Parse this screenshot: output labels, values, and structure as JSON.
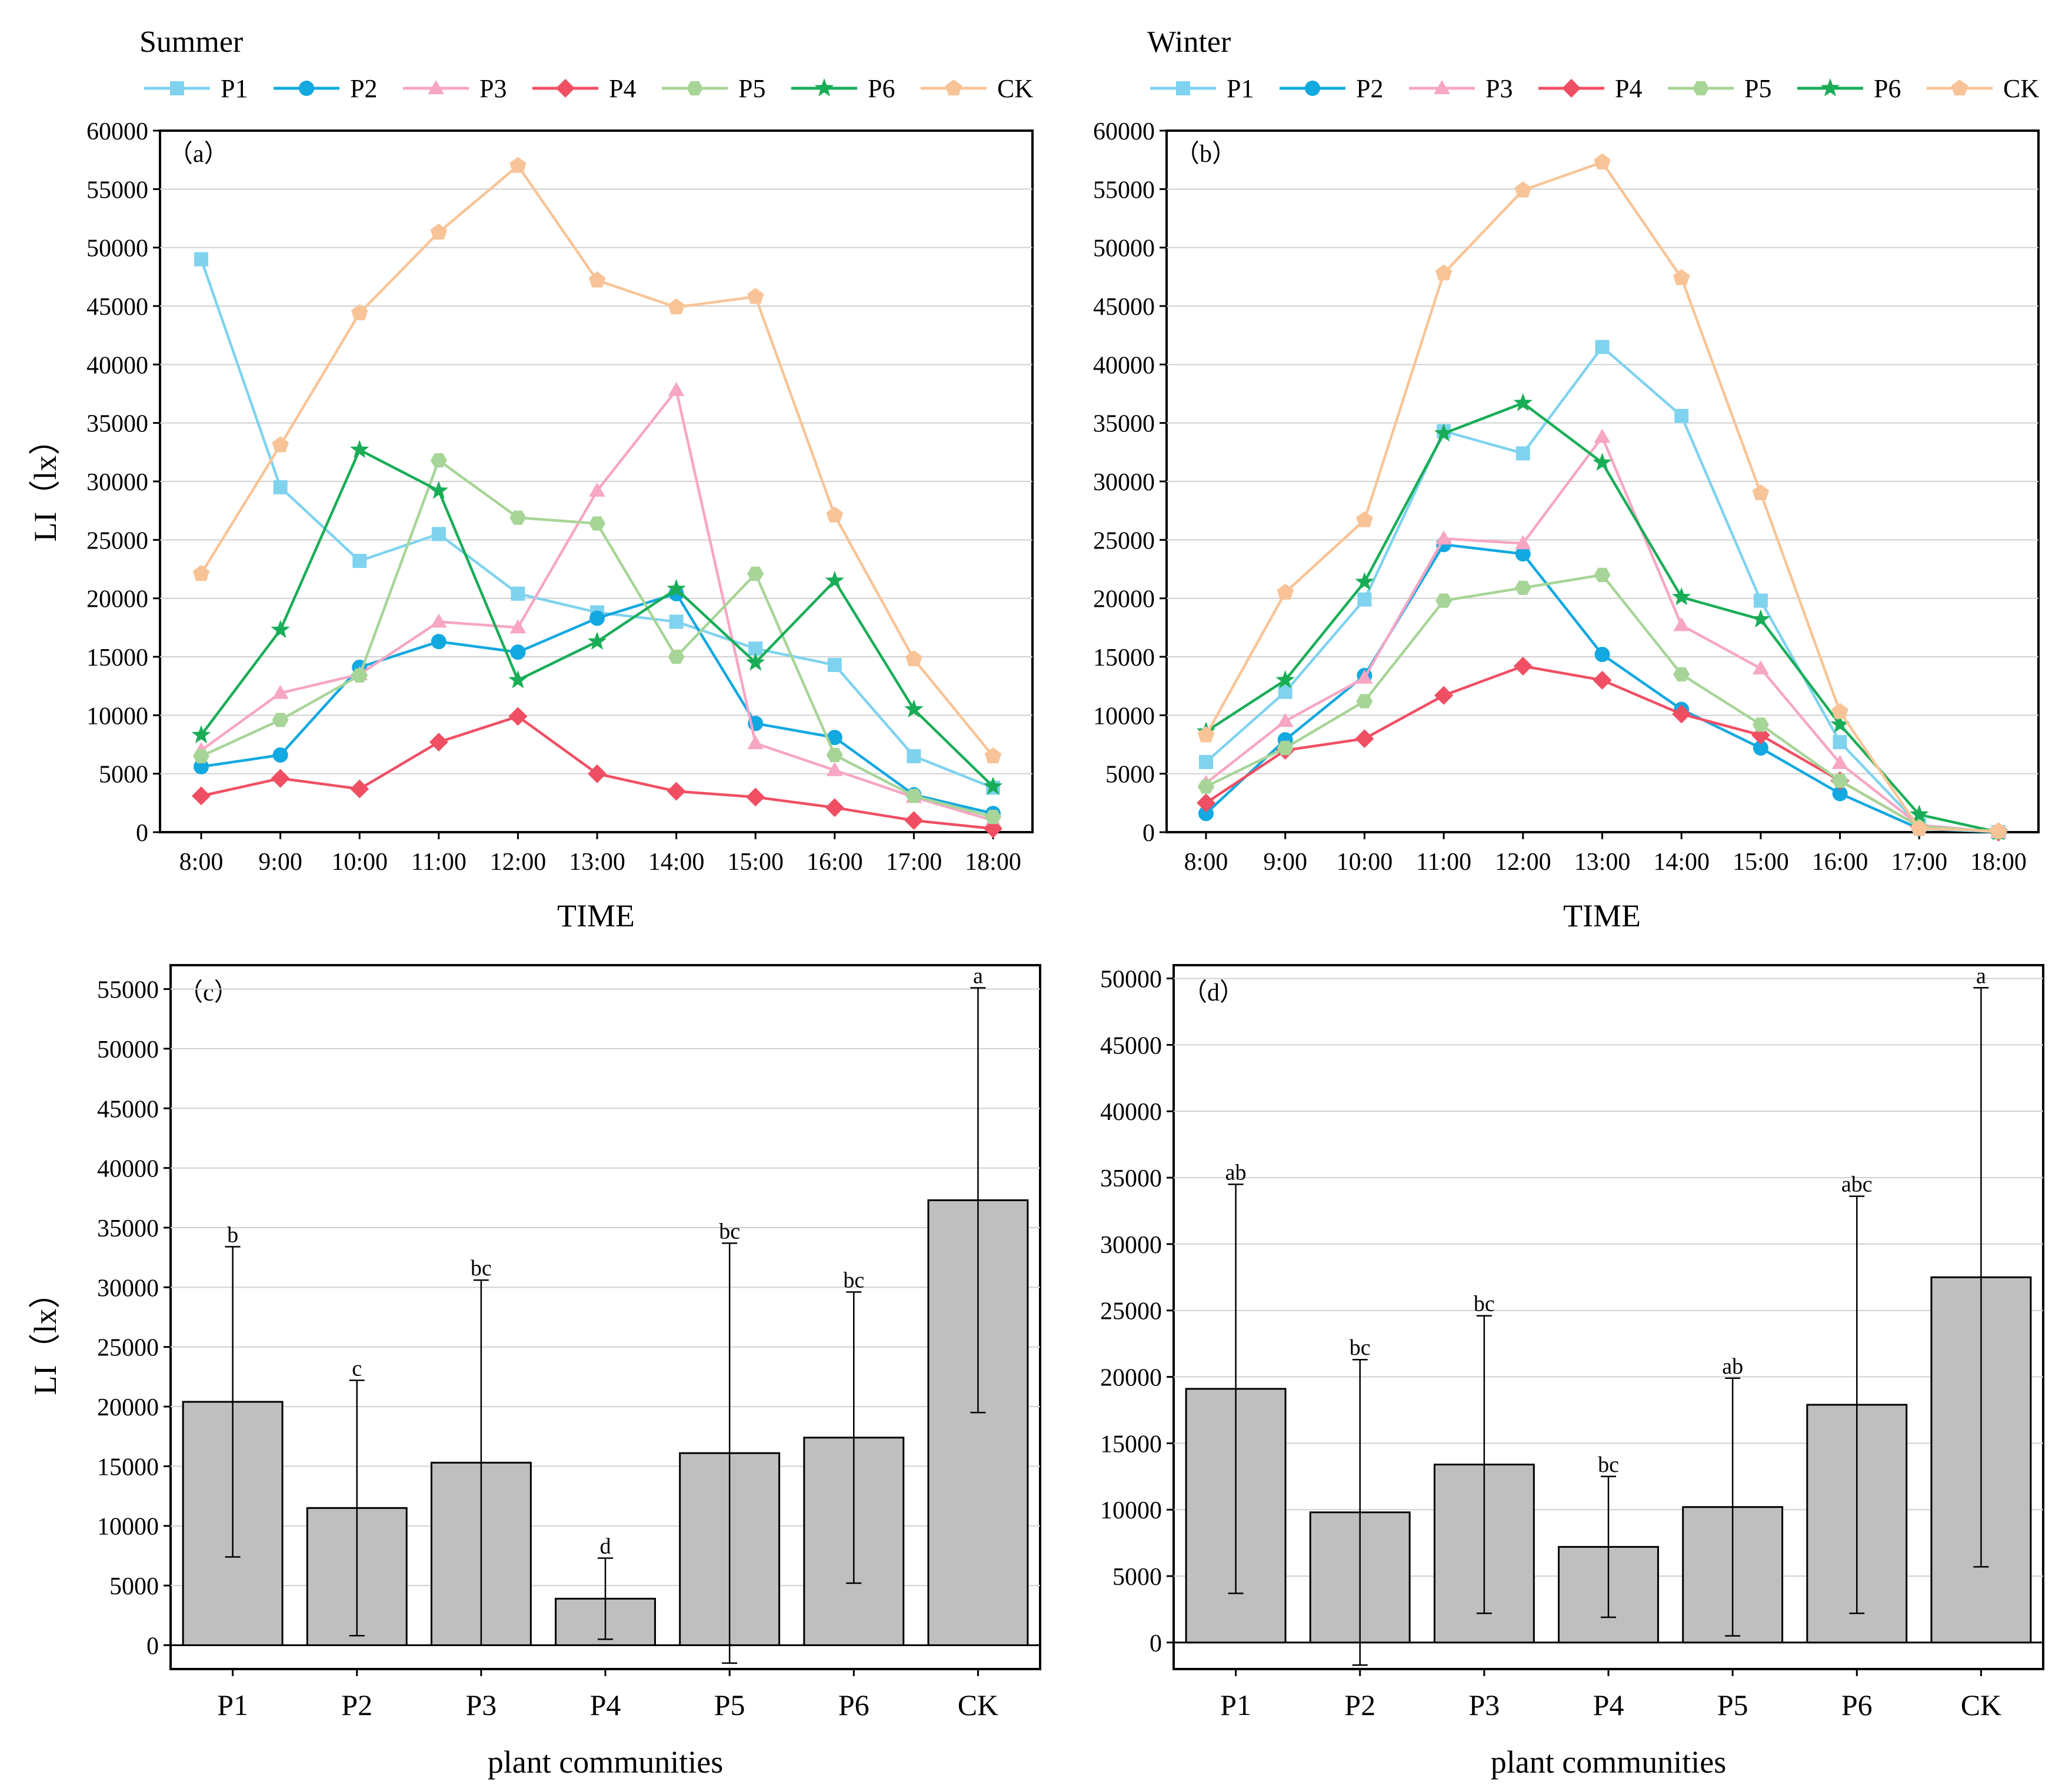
{
  "series_styles": [
    {
      "name": "P1",
      "color": "#7fd3ee",
      "marker": "square"
    },
    {
      "name": "P2",
      "color": "#12a8e0",
      "marker": "circle"
    },
    {
      "name": "P3",
      "color": "#f7a6c4",
      "marker": "triangle"
    },
    {
      "name": "P4",
      "color": "#f04f63",
      "marker": "diamond"
    },
    {
      "name": "P5",
      "color": "#a7d597",
      "marker": "hexagon"
    },
    {
      "name": "P6",
      "color": "#19ad57",
      "marker": "star"
    },
    {
      "name": "CK",
      "color": "#f8c497",
      "marker": "pentagon"
    }
  ],
  "bar_fill": "#bfbfbf",
  "chart_data": [
    {
      "id": "a",
      "type": "line",
      "title": "Summer",
      "panel_label": "（a）",
      "xlabel": "TIME",
      "ylabel": "LI（lx）",
      "ylim": [
        0,
        60000
      ],
      "yticks": [
        0,
        5000,
        10000,
        15000,
        20000,
        25000,
        30000,
        35000,
        40000,
        45000,
        50000,
        55000,
        60000
      ],
      "categories": [
        "8:00",
        "9:00",
        "10:00",
        "11:00",
        "12:00",
        "13:00",
        "14:00",
        "15:00",
        "16:00",
        "17:00",
        "18:00"
      ],
      "series": [
        {
          "name": "P1",
          "values": [
            49000,
            29500,
            23200,
            25500,
            20400,
            18800,
            18000,
            15700,
            14300,
            6500,
            3800
          ]
        },
        {
          "name": "P2",
          "values": [
            5600,
            6600,
            14100,
            16300,
            15400,
            18300,
            20400,
            9300,
            8100,
            3200,
            1600
          ]
        },
        {
          "name": "P3",
          "values": [
            7000,
            11900,
            13500,
            18000,
            17500,
            29200,
            37800,
            7600,
            5300,
            3000,
            1000
          ]
        },
        {
          "name": "P4",
          "values": [
            3100,
            4600,
            3700,
            7700,
            9900,
            5000,
            3500,
            3000,
            2100,
            1000,
            300
          ]
        },
        {
          "name": "P5",
          "values": [
            6500,
            9600,
            13400,
            31800,
            26900,
            26400,
            15000,
            22100,
            6600,
            3100,
            1300
          ]
        },
        {
          "name": "P6",
          "values": [
            8300,
            17300,
            32700,
            29200,
            13000,
            16300,
            20800,
            14500,
            21500,
            10500,
            3900
          ]
        },
        {
          "name": "CK",
          "values": [
            22100,
            33100,
            44400,
            51300,
            57000,
            47200,
            44900,
            45800,
            27100,
            14800,
            6500
          ]
        }
      ]
    },
    {
      "id": "b",
      "type": "line",
      "title": "Winter",
      "panel_label": "（b）",
      "xlabel": "TIME",
      "ylabel": "",
      "ylim": [
        0,
        60000
      ],
      "yticks": [
        0,
        5000,
        10000,
        15000,
        20000,
        25000,
        30000,
        35000,
        40000,
        45000,
        50000,
        55000,
        60000
      ],
      "categories": [
        "8:00",
        "9:00",
        "10:00",
        "11:00",
        "12:00",
        "13:00",
        "14:00",
        "15:00",
        "16:00",
        "17:00",
        "18:00"
      ],
      "series": [
        {
          "name": "P1",
          "values": [
            6000,
            12000,
            19900,
            34300,
            32400,
            41500,
            35600,
            19800,
            7700,
            600,
            0
          ]
        },
        {
          "name": "P2",
          "values": [
            1600,
            7900,
            13400,
            24600,
            23800,
            15200,
            10500,
            7200,
            3300,
            300,
            0
          ]
        },
        {
          "name": "P3",
          "values": [
            4200,
            9500,
            13200,
            25100,
            24700,
            33800,
            17700,
            14000,
            5900,
            600,
            0
          ]
        },
        {
          "name": "P4",
          "values": [
            2500,
            7000,
            8000,
            11700,
            14200,
            13000,
            10100,
            8300,
            4400,
            500,
            0
          ]
        },
        {
          "name": "P5",
          "values": [
            3900,
            7200,
            11200,
            19800,
            20900,
            22000,
            13500,
            9200,
            4400,
            500,
            0
          ]
        },
        {
          "name": "P6",
          "values": [
            8600,
            13000,
            21400,
            34100,
            36700,
            31600,
            20100,
            18200,
            9200,
            1500,
            0
          ]
        },
        {
          "name": "CK",
          "values": [
            8300,
            20500,
            26700,
            47800,
            54900,
            57300,
            47400,
            29000,
            10300,
            300,
            100
          ]
        }
      ]
    },
    {
      "id": "c",
      "type": "bar",
      "title": "",
      "panel_label": "（c）",
      "xlabel": "plant communities",
      "ylabel": "LI（lx）",
      "ylim": [
        -2000,
        57000
      ],
      "yticks": [
        0,
        5000,
        10000,
        15000,
        20000,
        25000,
        30000,
        35000,
        40000,
        45000,
        50000,
        55000
      ],
      "categories": [
        "P1",
        "P2",
        "P3",
        "P4",
        "P5",
        "P6",
        "CK"
      ],
      "values": [
        20400,
        11500,
        15300,
        3900,
        16100,
        17400,
        37300
      ],
      "errors": [
        13000,
        10700,
        15300,
        3400,
        17600,
        12200,
        17800
      ],
      "letters": [
        "b",
        "c",
        "bc",
        "d",
        "bc",
        "bc",
        "a"
      ]
    },
    {
      "id": "d",
      "type": "bar",
      "title": "",
      "panel_label": "（d）",
      "xlabel": "plant communities",
      "ylabel": "",
      "ylim": [
        -2000,
        51000
      ],
      "yticks": [
        0,
        5000,
        10000,
        15000,
        20000,
        25000,
        30000,
        35000,
        40000,
        45000,
        50000
      ],
      "categories": [
        "P1",
        "P2",
        "P3",
        "P4",
        "P5",
        "P6",
        "CK"
      ],
      "values": [
        19100,
        9800,
        13400,
        7200,
        10200,
        17900,
        27500
      ],
      "errors": [
        15400,
        11500,
        11200,
        5300,
        9700,
        15700,
        21800
      ],
      "letters": [
        "ab",
        "bc",
        "bc",
        "bc",
        "ab",
        "abc",
        "a"
      ]
    }
  ]
}
